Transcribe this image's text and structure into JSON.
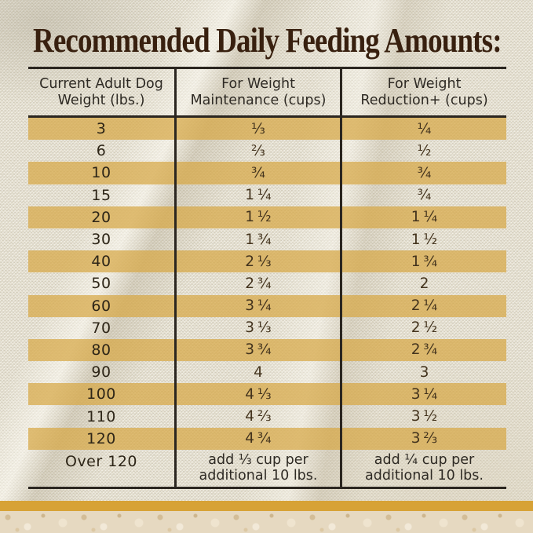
{
  "title": "Recommended Daily Feeding Amounts:",
  "table": {
    "headers": [
      {
        "line1": "Current Adult Dog",
        "line2": "Weight (lbs.)"
      },
      {
        "line1": "For Weight",
        "line2": "Maintenance (cups)"
      },
      {
        "line1": "For Weight",
        "line2": "Reduction+ (cups)"
      }
    ],
    "rows": [
      {
        "weight": "3",
        "maintenance": "⅓",
        "reduction": "¼",
        "highlighted": true
      },
      {
        "weight": "6",
        "maintenance": "⅔",
        "reduction": "½",
        "highlighted": false
      },
      {
        "weight": "10",
        "maintenance": "¾",
        "reduction": "¾",
        "highlighted": true
      },
      {
        "weight": "15",
        "maintenance": "1 ¼",
        "reduction": "¾",
        "highlighted": false
      },
      {
        "weight": "20",
        "maintenance": "1 ½",
        "reduction": "1 ¼",
        "highlighted": true
      },
      {
        "weight": "30",
        "maintenance": "1 ¾",
        "reduction": "1 ½",
        "highlighted": false
      },
      {
        "weight": "40",
        "maintenance": "2 ⅓",
        "reduction": "1 ¾",
        "highlighted": true
      },
      {
        "weight": "50",
        "maintenance": "2 ¾",
        "reduction": "2",
        "highlighted": false
      },
      {
        "weight": "60",
        "maintenance": "3 ¼",
        "reduction": "2 ¼",
        "highlighted": true
      },
      {
        "weight": "70",
        "maintenance": "3 ⅓",
        "reduction": "2 ½",
        "highlighted": false
      },
      {
        "weight": "80",
        "maintenance": "3 ¾",
        "reduction": "2 ¾",
        "highlighted": true
      },
      {
        "weight": "90",
        "maintenance": "4",
        "reduction": "3",
        "highlighted": false
      },
      {
        "weight": "100",
        "maintenance": "4 ⅓",
        "reduction": "3 ¼",
        "highlighted": true
      },
      {
        "weight": "110",
        "maintenance": "4 ⅔",
        "reduction": "3 ½",
        "highlighted": false
      },
      {
        "weight": "120",
        "maintenance": "4 ¾",
        "reduction": "3 ⅔",
        "highlighted": true
      }
    ],
    "footer": {
      "weight": "Over 120",
      "maintenance_line1": "add ⅓ cup per",
      "maintenance_line2": "additional 10 lbs.",
      "reduction_line1": "add ¼ cup per",
      "reduction_line2": "additional 10 lbs."
    }
  },
  "colors": {
    "background_burlap": "#e8e3d3",
    "highlight_band": "#dcb96f",
    "title_text": "#38200f",
    "table_text": "#2e2a24",
    "border": "#2b2620",
    "bottom_gold_stripe": "#d7a236",
    "bottom_stone": "#e6d9c1"
  },
  "chart_data": {
    "type": "table",
    "title": "Recommended Daily Feeding Amounts:",
    "columns": [
      "Current Adult Dog Weight (lbs.)",
      "For Weight Maintenance (cups)",
      "For Weight Reduction+ (cups)"
    ],
    "rows": [
      [
        "3",
        "1/3",
        "1/4"
      ],
      [
        "6",
        "2/3",
        "1/2"
      ],
      [
        "10",
        "3/4",
        "3/4"
      ],
      [
        "15",
        "1 1/4",
        "3/4"
      ],
      [
        "20",
        "1 1/2",
        "1 1/4"
      ],
      [
        "30",
        "1 3/4",
        "1 1/2"
      ],
      [
        "40",
        "2 1/3",
        "1 3/4"
      ],
      [
        "50",
        "2 3/4",
        "2"
      ],
      [
        "60",
        "3 1/4",
        "2 1/4"
      ],
      [
        "70",
        "3 1/3",
        "2 1/2"
      ],
      [
        "80",
        "3 3/4",
        "2 3/4"
      ],
      [
        "90",
        "4",
        "3"
      ],
      [
        "100",
        "4 1/3",
        "3 1/4"
      ],
      [
        "110",
        "4 2/3",
        "3 1/2"
      ],
      [
        "120",
        "4 3/4",
        "3 2/3"
      ],
      [
        "Over 120",
        "add 1/3 cup per additional 10 lbs.",
        "add 1/4 cup per additional 10 lbs."
      ]
    ],
    "layout": {
      "striped_rows": "odd data rows highlighted gold",
      "grid": "vertical column dividers + horizontal rules above/below header and below footer"
    }
  }
}
